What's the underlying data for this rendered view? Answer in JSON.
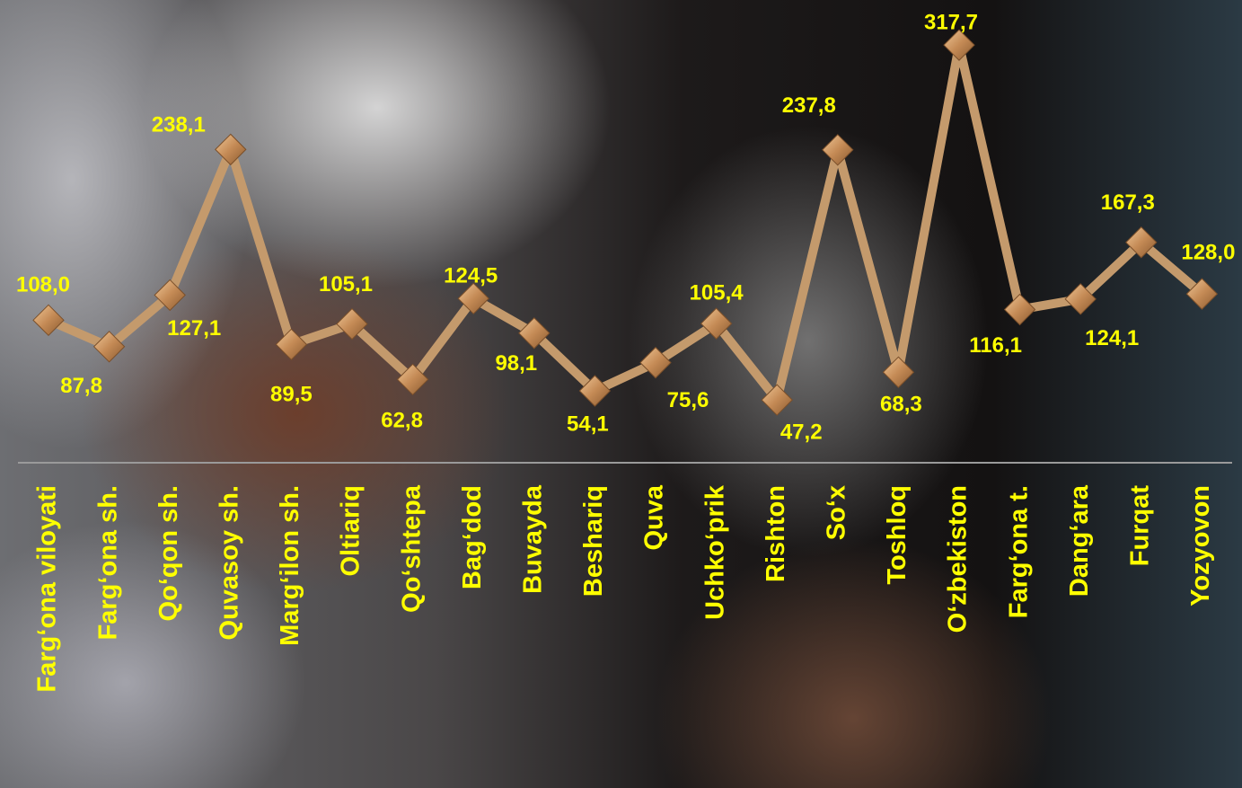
{
  "chart_data": {
    "type": "line",
    "categories": [
      "Farg‘ona viloyati",
      "Farg‘ona sh.",
      "Qo‘qon sh.",
      "Quvasoy sh.",
      "Marg‘ilon sh.",
      "Oltiariq",
      "Qo‘shtepa",
      "Bag‘dod",
      "Buvayda",
      "Beshariq",
      "Quva",
      "Uchko‘prik",
      "Rishton",
      "So‘x",
      "Toshloq",
      "O‘zbekiston",
      "Farg‘ona t.",
      "Dang‘ara",
      "Furqat",
      "Yozyovon"
    ],
    "series": [
      {
        "color": "#c49a6c",
        "values": [
          108.0,
          87.8,
          127.1,
          238.1,
          89.5,
          105.1,
          62.8,
          124.5,
          98.1,
          54.1,
          75.6,
          105.4,
          47.2,
          237.8,
          68.3,
          317.7,
          116.1,
          124.1,
          167.3,
          128.0
        ],
        "value_labels": [
          "108,0",
          "87,8",
          "127,1",
          "238,1",
          "89,5",
          "105,1",
          "62,8",
          "124,5",
          "98,1",
          "54,1",
          "75,6",
          "105,4",
          "47,2",
          "237,8",
          "68,3",
          "317,7",
          "116,1",
          "124,1",
          "167,3",
          "128,0"
        ]
      }
    ],
    "label_color": "#ffff00"
  }
}
